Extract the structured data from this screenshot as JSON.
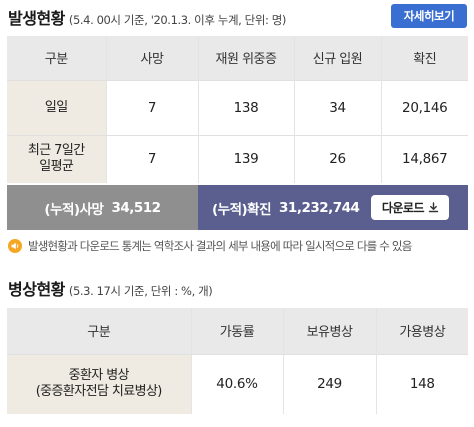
{
  "occurrence": {
    "title": "발생현황",
    "subtitle": "(5.4. 00시 기준, '20.1.3. 이후 누계, 단위: 명)",
    "detail_button": "자세히보기",
    "headers": [
      "구분",
      "사망",
      "재원 위중증",
      "신규 입원",
      "확진"
    ],
    "rows": [
      {
        "label": "일일",
        "values": [
          "7",
          "138",
          "34",
          "20,146"
        ]
      },
      {
        "label_lines": [
          "최근 7일간",
          "일평균"
        ],
        "values": [
          "7",
          "139",
          "26",
          "14,867"
        ]
      }
    ],
    "summary": {
      "death_label": "(누적)사망",
      "death_value": "34,512",
      "confirmed_label": "(누적)확진",
      "confirmed_value": "31,232,744",
      "download_button": "다운로드"
    },
    "notice": "발생현황과 다운로드 통계는 역학조사 결과의 세부 내용에 따라 일시적으로 다를 수 있음"
  },
  "beds": {
    "title": "병상현황",
    "subtitle": "(5.3. 17시 기준, 단위 : %, 개)",
    "headers": [
      "구분",
      "가동률",
      "보유병상",
      "가용병상"
    ],
    "rows": [
      {
        "label_lines": [
          "중환자 병상",
          "(중증환자전담 치료병상)"
        ],
        "values": [
          "40.6%",
          "249",
          "148"
        ]
      }
    ]
  },
  "colors": {
    "accent_button": "#3a6fd1",
    "summary_left": "#8f8f8f",
    "summary_right": "#5a5f8f",
    "label_cell": "#f0ebe2",
    "notice_icon": "#f5a623"
  },
  "icons": {
    "download": "download-icon",
    "notice": "speaker-icon"
  }
}
